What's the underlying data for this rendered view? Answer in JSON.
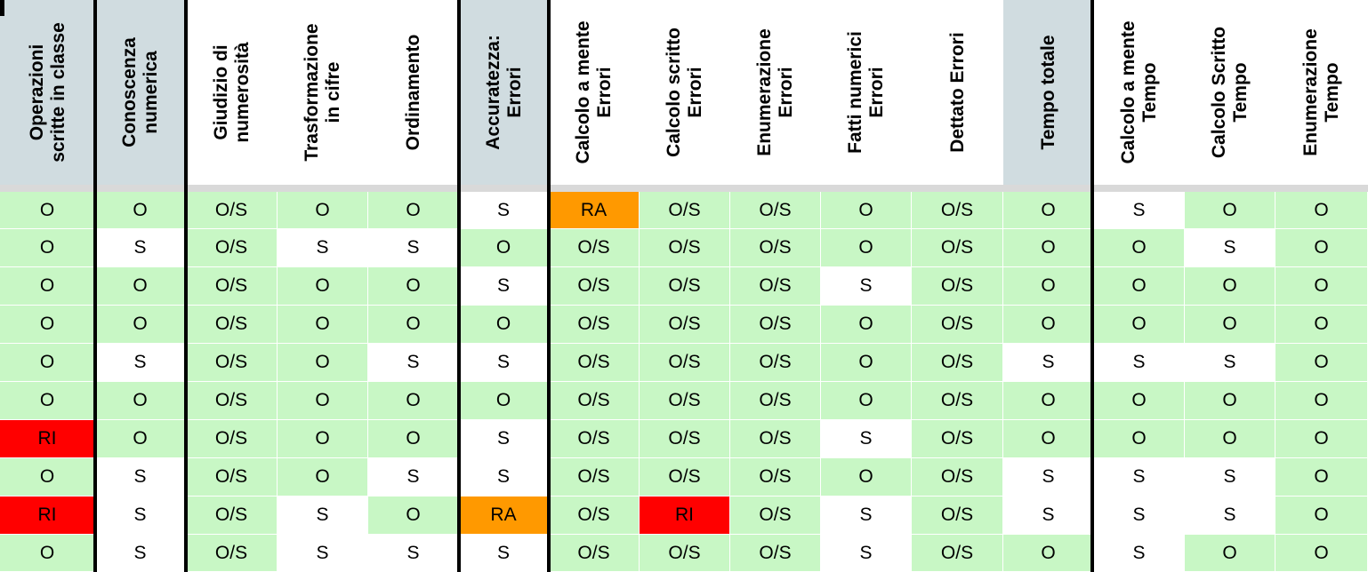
{
  "colors": {
    "O": "#c8f7c5",
    "O/S": "#c8f7c5",
    "S": "#ffffff",
    "RA": "#ff9900",
    "RI": "#ff0000",
    "header_default": "#ffffff",
    "header_grey": "#d0dce0"
  },
  "columns": [
    {
      "label": "Operazioni\nscritte in classe",
      "grey": true
    },
    {
      "label": "Conoscenza\nnumerica",
      "grey": true
    },
    {
      "label": "Giudizio di\nnumerosità",
      "grey": false
    },
    {
      "label": "Trasformazione\nin cifre",
      "grey": false
    },
    {
      "label": "Ordinamento",
      "grey": false
    },
    {
      "label": "Accuratezza:\nErrori",
      "grey": true
    },
    {
      "label": "Calcolo a mente\nErrori",
      "grey": false
    },
    {
      "label": "Calcolo scritto\nErrori",
      "grey": false
    },
    {
      "label": "Enumerazione\nErrori",
      "grey": false
    },
    {
      "label": "Fatti numerici\nErrori",
      "grey": false
    },
    {
      "label": "Dettato Errori",
      "grey": false
    },
    {
      "label": "Tempo totale",
      "grey": true
    },
    {
      "label": "Calcolo a mente\nTempo",
      "grey": false
    },
    {
      "label": "Calcolo Scritto\nTempo",
      "grey": false
    },
    {
      "label": "Enumerazione\nTempo",
      "grey": false
    }
  ],
  "rows": [
    [
      "O",
      "O",
      "O/S",
      "O",
      "O",
      "S",
      "RA",
      "O/S",
      "O/S",
      "O",
      "O/S",
      "O",
      "S",
      "O",
      "O"
    ],
    [
      "O",
      "S",
      "O/S",
      "S",
      "S",
      "O",
      "O/S",
      "O/S",
      "O/S",
      "O",
      "O/S",
      "O",
      "O",
      "S",
      "O"
    ],
    [
      "O",
      "O",
      "O/S",
      "O",
      "O",
      "S",
      "O/S",
      "O/S",
      "O/S",
      "S",
      "O/S",
      "O",
      "O",
      "O",
      "O"
    ],
    [
      "O",
      "O",
      "O/S",
      "O",
      "O",
      "O",
      "O/S",
      "O/S",
      "O/S",
      "O",
      "O/S",
      "O",
      "O",
      "O",
      "O"
    ],
    [
      "O",
      "S",
      "O/S",
      "O",
      "S",
      "S",
      "O/S",
      "O/S",
      "O/S",
      "O",
      "O/S",
      "S",
      "S",
      "S",
      "O"
    ],
    [
      "O",
      "O",
      "O/S",
      "O",
      "O",
      "O",
      "O/S",
      "O/S",
      "O/S",
      "O",
      "O/S",
      "O",
      "O",
      "O",
      "O"
    ],
    [
      "RI",
      "O",
      "O/S",
      "O",
      "O",
      "S",
      "O/S",
      "O/S",
      "O/S",
      "S",
      "O/S",
      "O",
      "O",
      "O",
      "O"
    ],
    [
      "O",
      "S",
      "O/S",
      "O",
      "S",
      "S",
      "O/S",
      "O/S",
      "O/S",
      "O",
      "O/S",
      "S",
      "S",
      "S",
      "O"
    ],
    [
      "RI",
      "S",
      "O/S",
      "S",
      "O",
      "RA",
      "O/S",
      "RI",
      "O/S",
      "S",
      "O/S",
      "S",
      "S",
      "S",
      "O"
    ],
    [
      "O",
      "S",
      "O/S",
      "S",
      "S",
      "S",
      "O/S",
      "O/S",
      "O/S",
      "S",
      "O/S",
      "O",
      "S",
      "O",
      "O"
    ]
  ]
}
